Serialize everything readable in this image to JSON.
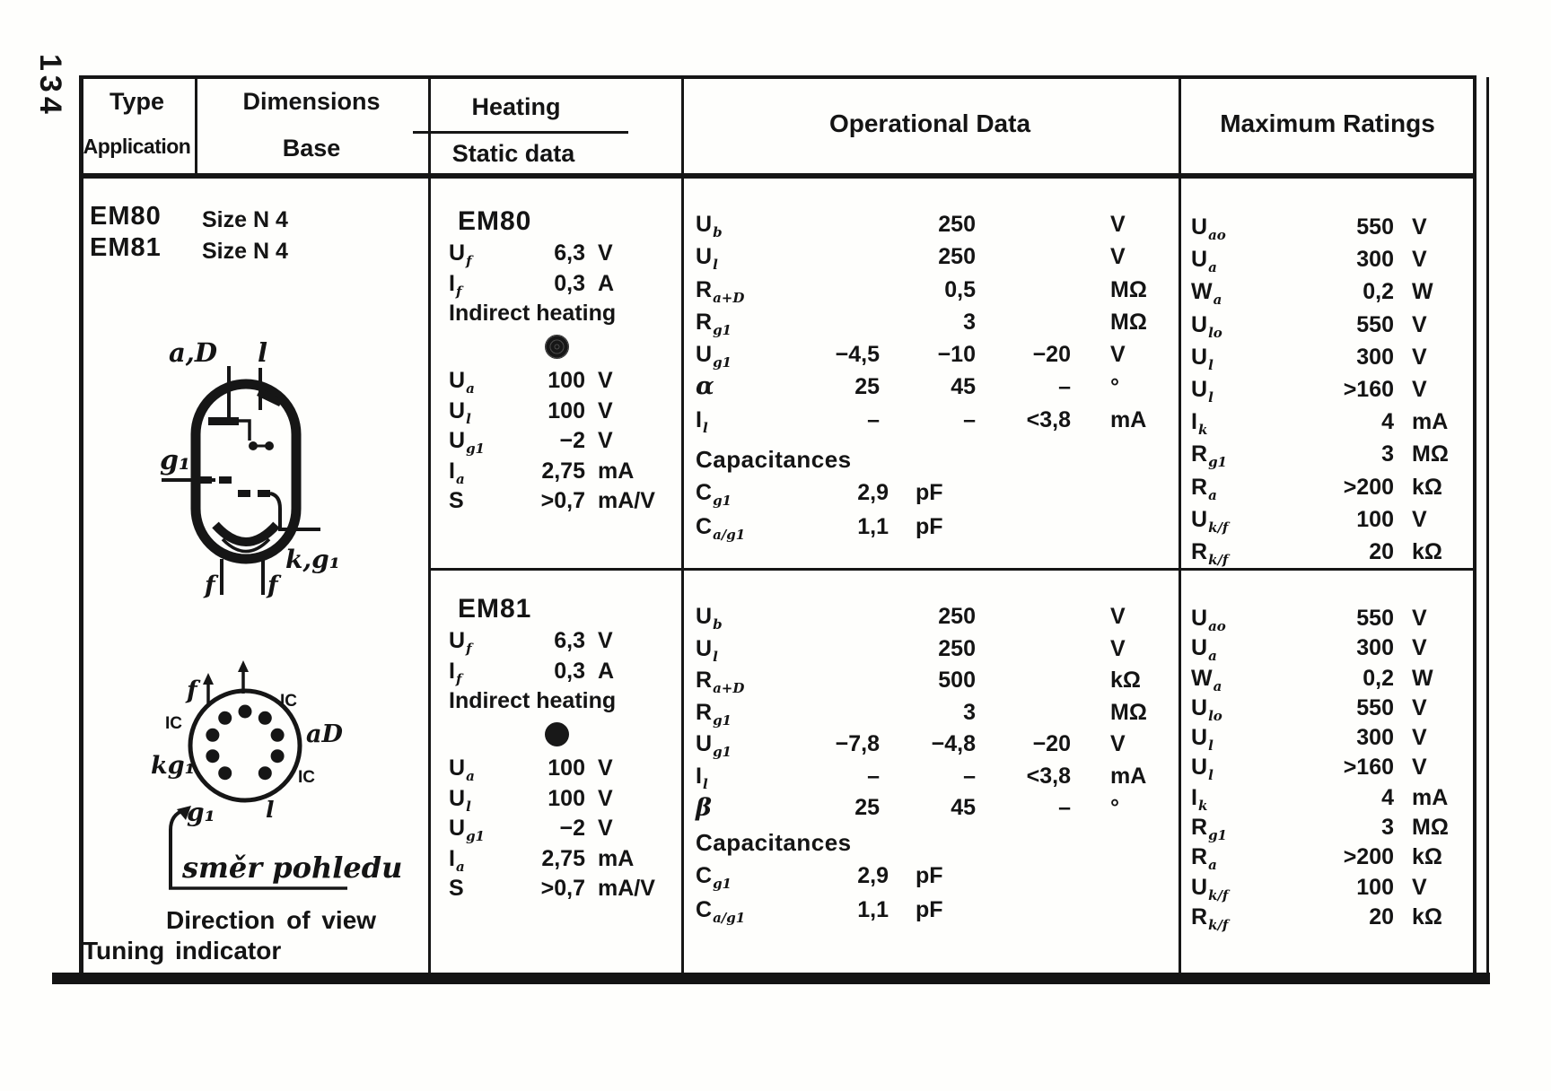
{
  "page": {
    "number": "134"
  },
  "header": {
    "col1_line1": "Type",
    "col1_line2": "Application",
    "col2_line1": "Dimensions",
    "col2_line2": "Base",
    "col3_line1": "Heating",
    "col3_line2": "Static data",
    "col4": "Operational Data",
    "col5": "Maximum Ratings"
  },
  "type_col": {
    "types": [
      "EM80",
      "EM81"
    ],
    "sizes": [
      "Size N 4",
      "Size N 4"
    ]
  },
  "diagrams": {
    "tube": {
      "top_left": "a,D",
      "top_right": "l",
      "left": "g₁",
      "bottom_right": "k,g₁",
      "f1": "f",
      "f2": "f"
    },
    "socket": {
      "f": "f",
      "ic_tr": "IC",
      "ic_l": "IC",
      "a_d": "aD",
      "kg1": "kg₁",
      "ic_br": "IC",
      "g1": "g₁",
      "l": "l"
    },
    "handwritten": "směr pohledu",
    "caption": "Direction of view",
    "application": "Tuning indicator"
  },
  "sections": [
    {
      "heating": {
        "title": "EM80",
        "rows_top": [
          {
            "l": {
              "b": "U",
              "s": "f"
            },
            "v": "6,3",
            "u": "V"
          },
          {
            "l": {
              "b": "I",
              "s": "f"
            },
            "v": "0,3",
            "u": "A"
          }
        ],
        "indirect": "Indirect heating",
        "rows_main": [
          {
            "l": {
              "b": "U",
              "s": "a"
            },
            "v": "100",
            "u": "V"
          },
          {
            "l": {
              "b": "U",
              "s": "l"
            },
            "v": "100",
            "u": "V"
          },
          {
            "l": {
              "b": "U",
              "s": "g1"
            },
            "v": "−2",
            "u": "V"
          },
          {
            "l": {
              "b": "I",
              "s": "a"
            },
            "v": "2,75",
            "u": "mA"
          },
          {
            "l": {
              "b": "S"
            },
            "v": ">0,7",
            "u": "mA/V"
          }
        ]
      },
      "operational": {
        "rows": [
          {
            "l": {
              "b": "U",
              "s": "b"
            },
            "c1": "",
            "c2": "250",
            "c3": "",
            "u": "V"
          },
          {
            "l": {
              "b": "U",
              "s": "l"
            },
            "c1": "",
            "c2": "250",
            "c3": "",
            "u": "V"
          },
          {
            "l": {
              "b": "R",
              "s": "a+D"
            },
            "c1": "",
            "c2": "0,5",
            "c3": "",
            "u": "MΩ"
          },
          {
            "l": {
              "b": "R",
              "s": "g1"
            },
            "c1": "",
            "c2": "3",
            "c3": "",
            "u": "MΩ"
          },
          {
            "l": {
              "b": "U",
              "s": "g1"
            },
            "c1": "−4,5",
            "c2": "−10",
            "c3": "−20",
            "u": "V"
          },
          {
            "l": {
              "b": "α",
              "it": true
            },
            "c1": "25",
            "c2": "45",
            "c3": "–",
            "u": "°"
          },
          {
            "l": {
              "b": "I",
              "s": "l"
            },
            "c1": "–",
            "c2": "–",
            "c3": "<3,8",
            "u": "mA"
          }
        ],
        "cap_title": "Capacitances",
        "cap_rows": [
          {
            "l": {
              "b": "C",
              "s": "g1"
            },
            "v": "2,9",
            "u": "pF"
          },
          {
            "l": {
              "b": "C",
              "s": "a/g1"
            },
            "v": "1,1",
            "u": "pF"
          }
        ]
      },
      "max": {
        "rows": [
          {
            "l": {
              "b": "U",
              "s": "ao"
            },
            "v": "550",
            "u": "V"
          },
          {
            "l": {
              "b": "U",
              "s": "a"
            },
            "v": "300",
            "u": "V"
          },
          {
            "l": {
              "b": "W",
              "s": "a"
            },
            "v": "0,2",
            "u": "W"
          },
          {
            "l": {
              "b": "U",
              "s": "lo"
            },
            "v": "550",
            "u": "V"
          },
          {
            "l": {
              "b": "U",
              "s": "l"
            },
            "v": "300",
            "u": "V"
          },
          {
            "l": {
              "b": "U",
              "s": "l"
            },
            "v": ">160",
            "u": "V"
          },
          {
            "l": {
              "b": "I",
              "s": "k"
            },
            "v": "4",
            "u": "mA"
          },
          {
            "l": {
              "b": "R",
              "s": "g1"
            },
            "v": "3",
            "u": "MΩ"
          },
          {
            "l": {
              "b": "R",
              "s": "a"
            },
            "v": ">200",
            "u": "kΩ"
          },
          {
            "l": {
              "b": "U",
              "s": "k/f"
            },
            "v": "100",
            "u": "V"
          },
          {
            "l": {
              "b": "R",
              "s": "k/f"
            },
            "v": "20",
            "u": "kΩ"
          }
        ]
      }
    },
    {
      "heating": {
        "title": "EM81",
        "rows_top": [
          {
            "l": {
              "b": "U",
              "s": "f"
            },
            "v": "6,3",
            "u": "V"
          },
          {
            "l": {
              "b": "I",
              "s": "f"
            },
            "v": "0,3",
            "u": "A"
          }
        ],
        "indirect": "Indirect heating",
        "rows_main": [
          {
            "l": {
              "b": "U",
              "s": "a"
            },
            "v": "100",
            "u": "V"
          },
          {
            "l": {
              "b": "U",
              "s": "l"
            },
            "v": "100",
            "u": "V"
          },
          {
            "l": {
              "b": "U",
              "s": "g1"
            },
            "v": "−2",
            "u": "V"
          },
          {
            "l": {
              "b": "I",
              "s": "a"
            },
            "v": "2,75",
            "u": "mA"
          },
          {
            "l": {
              "b": "S"
            },
            "v": ">0,7",
            "u": "mA/V"
          }
        ]
      },
      "operational": {
        "rows": [
          {
            "l": {
              "b": "U",
              "s": "b"
            },
            "c1": "",
            "c2": "250",
            "c3": "",
            "u": "V"
          },
          {
            "l": {
              "b": "U",
              "s": "l"
            },
            "c1": "",
            "c2": "250",
            "c3": "",
            "u": "V"
          },
          {
            "l": {
              "b": "R",
              "s": "a+D"
            },
            "c1": "",
            "c2": "500",
            "c3": "",
            "u": "kΩ"
          },
          {
            "l": {
              "b": "R",
              "s": "g1"
            },
            "c1": "",
            "c2": "3",
            "c3": "",
            "u": "MΩ"
          },
          {
            "l": {
              "b": "U",
              "s": "g1"
            },
            "c1": "−7,8",
            "c2": "−4,8",
            "c3": "−20",
            "u": "V"
          },
          {
            "l": {
              "b": "I",
              "s": "l"
            },
            "c1": "–",
            "c2": "–",
            "c3": "<3,8",
            "u": "mA"
          },
          {
            "l": {
              "b": "β",
              "it": true
            },
            "c1": "25",
            "c2": "45",
            "c3": "–",
            "u": "°"
          }
        ],
        "cap_title": "Capacitances",
        "cap_rows": [
          {
            "l": {
              "b": "C",
              "s": "g1"
            },
            "v": "2,9",
            "u": "pF"
          },
          {
            "l": {
              "b": "C",
              "s": "a/g1"
            },
            "v": "1,1",
            "u": "pF"
          }
        ]
      },
      "max": {
        "rows": [
          {
            "l": {
              "b": "U",
              "s": "ao"
            },
            "v": "550",
            "u": "V"
          },
          {
            "l": {
              "b": "U",
              "s": "a"
            },
            "v": "300",
            "u": "V"
          },
          {
            "l": {
              "b": "W",
              "s": "a"
            },
            "v": "0,2",
            "u": "W"
          },
          {
            "l": {
              "b": "U",
              "s": "lo"
            },
            "v": "550",
            "u": "V"
          },
          {
            "l": {
              "b": "U",
              "s": "l"
            },
            "v": "300",
            "u": "V"
          },
          {
            "l": {
              "b": "U",
              "s": "l"
            },
            "v": ">160",
            "u": "V"
          },
          {
            "l": {
              "b": "I",
              "s": "k"
            },
            "v": "4",
            "u": "mA"
          },
          {
            "l": {
              "b": "R",
              "s": "g1"
            },
            "v": "3",
            "u": "MΩ"
          },
          {
            "l": {
              "b": "R",
              "s": "a"
            },
            "v": ">200",
            "u": "kΩ"
          },
          {
            "l": {
              "b": "U",
              "s": "k/f"
            },
            "v": "100",
            "u": "V"
          },
          {
            "l": {
              "b": "R",
              "s": "k/f"
            },
            "v": "20",
            "u": "kΩ"
          }
        ]
      }
    }
  ]
}
